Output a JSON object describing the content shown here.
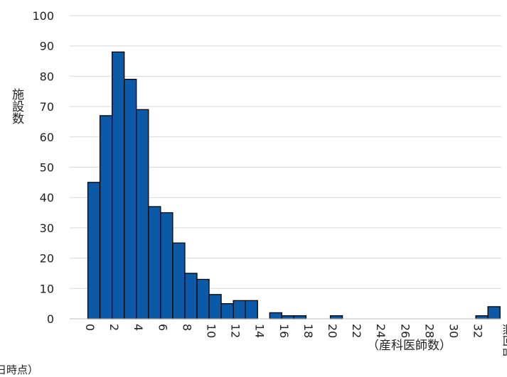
{
  "chart_data": {
    "type": "bar",
    "categories": [
      "0",
      "1",
      "2",
      "3",
      "4",
      "5",
      "6",
      "7",
      "8",
      "9",
      "10",
      "11",
      "12",
      "13",
      "14",
      "15",
      "16",
      "17",
      "18",
      "19",
      "20",
      "21",
      "22",
      "23",
      "24",
      "25",
      "26",
      "27",
      "28",
      "29",
      "30",
      "31",
      "32",
      "33",
      "無回答"
    ],
    "values": [
      0,
      45,
      67,
      88,
      79,
      69,
      37,
      35,
      25,
      15,
      13,
      8,
      5,
      6,
      6,
      0,
      2,
      1,
      1,
      0,
      0,
      1,
      0,
      0,
      0,
      0,
      0,
      0,
      0,
      0,
      0,
      0,
      0,
      1,
      4
    ],
    "tick_labels": [
      "0",
      "2",
      "4",
      "6",
      "8",
      "10",
      "12",
      "14",
      "16",
      "18",
      "20",
      "22",
      "24",
      "26",
      "28",
      "30",
      "32",
      "無回答"
    ],
    "y_ticks": [
      0,
      10,
      20,
      30,
      40,
      50,
      60,
      70,
      80,
      90,
      100
    ],
    "ylim": [
      0,
      100
    ],
    "ylabel": "施設数",
    "ylabel_chars": [
      "施",
      "設",
      "数",
      "）"
    ],
    "xlabel": "（産科医師数）",
    "grid": true,
    "bar_color": "#0a5aa8",
    "bar_edge_color": "#000000",
    "grid_color": "#d9d9d9"
  },
  "footer": {
    "cutoff_text": "日時点）"
  }
}
